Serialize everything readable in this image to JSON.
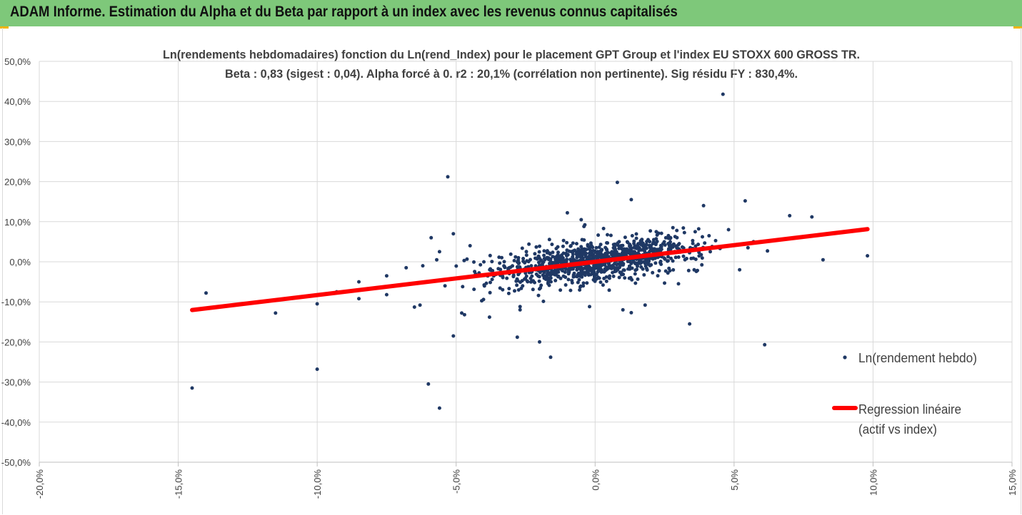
{
  "header": {
    "title": "ADAM Informe. Estimation du Alpha et du Beta par rapport à un index avec les revenus connus capitalisés"
  },
  "colors": {
    "header_bg": "#7ec87a",
    "points": "#1f3864",
    "regression": "#ff0000",
    "grid": "#d9d9d9",
    "text": "#404040"
  },
  "chart_data": {
    "type": "scatter",
    "title": "Ln(rendements hebdomadaires) fonction du Ln(rend_Index) pour le placement GPT Group et l'index EU STOXX 600 GROSS TR.",
    "subtitle": "Beta : 0,83 (sigest : 0,04).  Alpha forcé à 0. r2 : 20,1% (corrélation non pertinente). Sig résidu FY : 830,4%.",
    "xlim": [
      -0.2,
      0.15
    ],
    "ylim": [
      -0.5,
      0.5
    ],
    "x_ticks": [
      "-20,0%",
      "-15,0%",
      "-10,0%",
      "-5,0%",
      "0,0%",
      "5,0%",
      "10,0%",
      "15,0%"
    ],
    "y_ticks": [
      "50,0%",
      "40,0%",
      "30,0%",
      "20,0%",
      "10,0%",
      "0,0%",
      "-10,0%",
      "-20,0%",
      "-30,0%",
      "-40,0%",
      "-50,0%"
    ],
    "grid": true,
    "legend_position": "right",
    "legend": {
      "scatter": "Ln(rendement hebdo)",
      "line_1": "Regression linéaire",
      "line_2": "(actif vs index)"
    },
    "regression": {
      "slope": 0.83,
      "intercept": 0,
      "x": [
        -0.145,
        0.098
      ]
    },
    "outliers": [
      [
        -0.145,
        -0.315
      ],
      [
        -0.14,
        -0.078
      ],
      [
        -0.115,
        -0.128
      ],
      [
        -0.1,
        -0.268
      ],
      [
        -0.1,
        -0.105
      ],
      [
        -0.093,
        -0.075
      ],
      [
        -0.085,
        -0.092
      ],
      [
        -0.085,
        -0.05
      ],
      [
        -0.075,
        -0.082
      ],
      [
        -0.075,
        -0.035
      ],
      [
        -0.068,
        -0.015
      ],
      [
        -0.065,
        -0.113
      ],
      [
        -0.063,
        -0.108
      ],
      [
        -0.062,
        -0.01
      ],
      [
        -0.06,
        -0.305
      ],
      [
        -0.059,
        0.06
      ],
      [
        -0.057,
        0.005
      ],
      [
        -0.056,
        0.025
      ],
      [
        -0.056,
        -0.365
      ],
      [
        -0.054,
        -0.06
      ],
      [
        -0.053,
        0.212
      ],
      [
        -0.051,
        0.07
      ],
      [
        -0.051,
        -0.185
      ],
      [
        -0.048,
        -0.128
      ],
      [
        -0.047,
        -0.132
      ],
      [
        -0.045,
        0.04
      ],
      [
        -0.042,
        -0.035
      ],
      [
        -0.038,
        -0.138
      ],
      [
        -0.028,
        -0.188
      ],
      [
        -0.027,
        -0.12
      ],
      [
        -0.027,
        -0.112
      ],
      [
        -0.02,
        -0.2
      ],
      [
        -0.016,
        -0.238
      ],
      [
        -0.01,
        0.122
      ],
      [
        -0.005,
        0.105
      ],
      [
        -0.004,
        0.088
      ],
      [
        -0.002,
        -0.112
      ],
      [
        0.008,
        0.198
      ],
      [
        0.01,
        -0.12
      ],
      [
        0.013,
        -0.127
      ],
      [
        0.013,
        0.155
      ],
      [
        0.018,
        -0.108
      ],
      [
        0.022,
        0.075
      ],
      [
        0.028,
        0.085
      ],
      [
        0.03,
        -0.055
      ],
      [
        0.034,
        -0.155
      ],
      [
        0.036,
        0.075
      ],
      [
        0.039,
        0.14
      ],
      [
        0.041,
        0.065
      ],
      [
        0.046,
        0.418
      ],
      [
        0.048,
        0.08
      ],
      [
        0.052,
        -0.02
      ],
      [
        0.054,
        0.152
      ],
      [
        0.055,
        0.035
      ],
      [
        0.057,
        0.05
      ],
      [
        0.062,
        0.027
      ],
      [
        0.061,
        -0.207
      ],
      [
        0.07,
        0.115
      ],
      [
        0.078,
        0.112
      ],
      [
        0.082,
        0.005
      ],
      [
        0.098,
        0.015
      ]
    ],
    "cloud": {
      "n": 1000,
      "x_center": 0.0,
      "x_sd": 0.018,
      "beta": 0.83,
      "noise_sd": 0.025
    }
  }
}
